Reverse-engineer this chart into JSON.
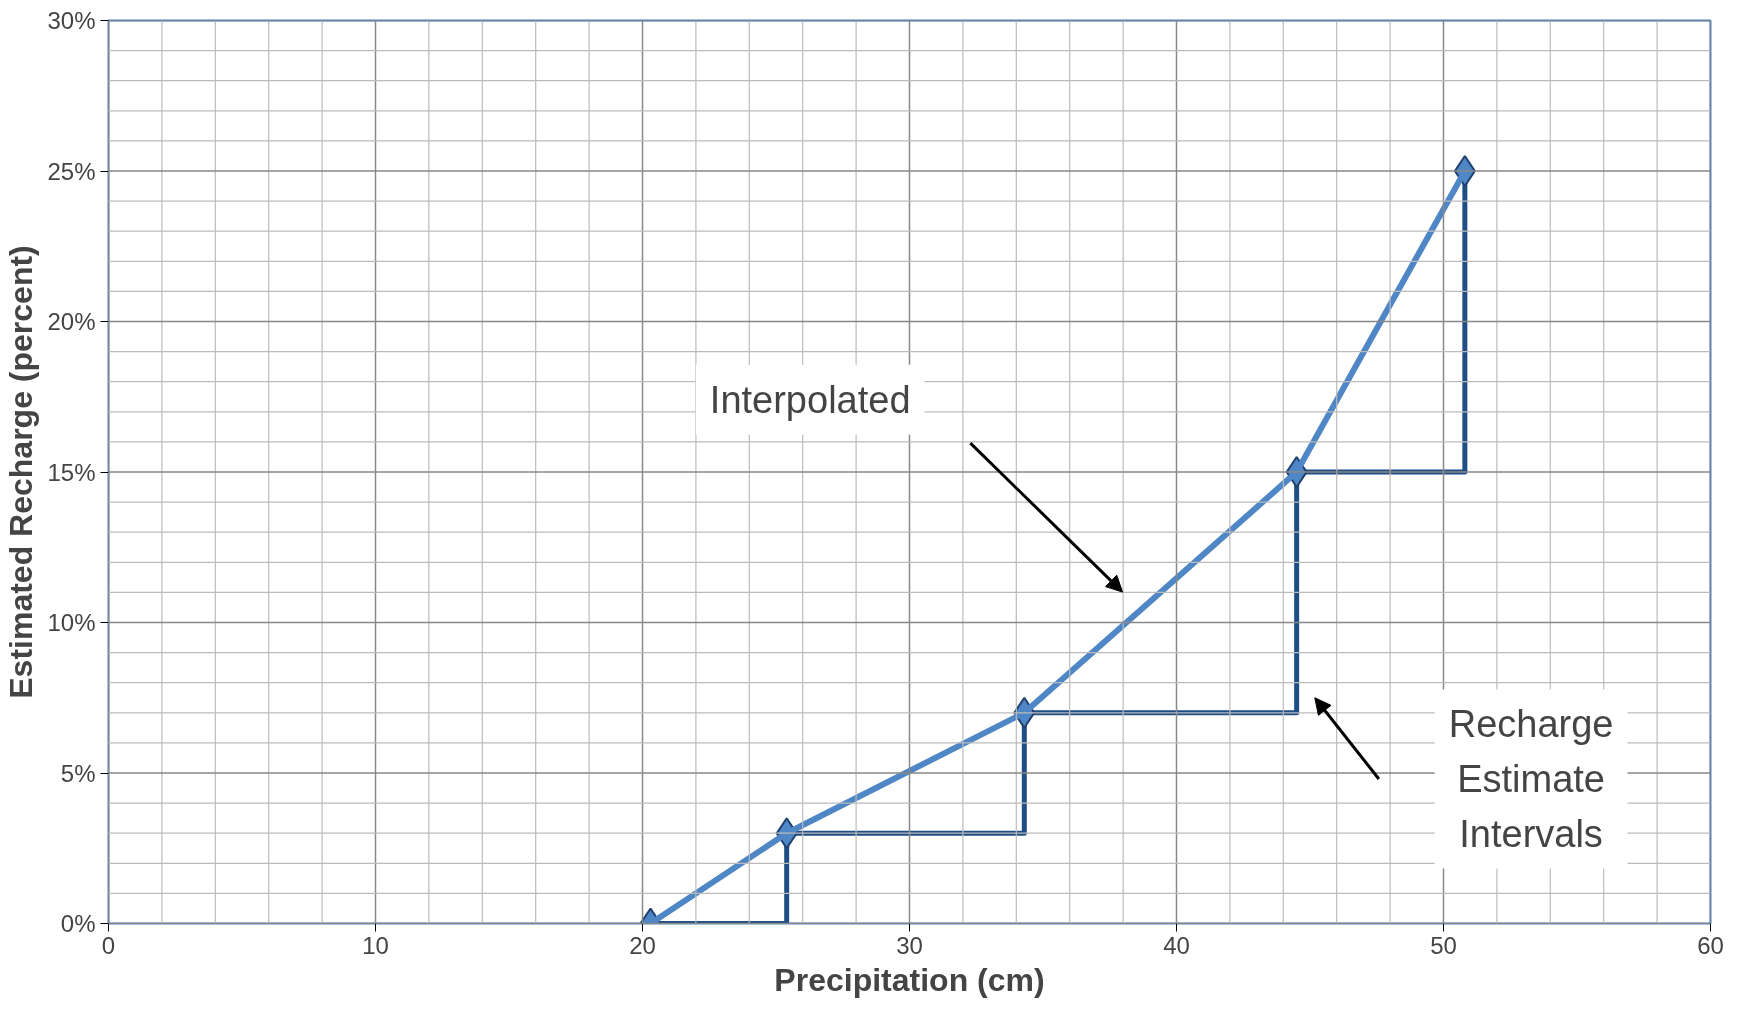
{
  "chart_data": {
    "type": "line",
    "xlabel": "Precipitation (cm)",
    "ylabel": "Estimated Recharge (percent)",
    "x": [
      20.3,
      25.4,
      34.3,
      44.5,
      50.8
    ],
    "series": [
      {
        "type": "step",
        "color": "#1f4e85",
        "values": [
          0,
          3,
          7,
          15,
          25
        ],
        "marker": "none"
      },
      {
        "color": "#4f86c6",
        "values": [
          0,
          3,
          7,
          15,
          25
        ],
        "marker": "diamond"
      }
    ],
    "xlim": [
      0,
      60
    ],
    "xticks": [
      0,
      10,
      20,
      30,
      40,
      50,
      60
    ],
    "ylim": [
      0,
      30
    ],
    "yticks": [
      {
        "value": 0,
        "label": "0%"
      },
      {
        "value": 5,
        "label": "5%"
      },
      {
        "value": 10,
        "label": "10%"
      },
      {
        "value": 15,
        "label": "15%"
      },
      {
        "value": 20,
        "label": "20%"
      },
      {
        "value": 25,
        "label": "25%"
      },
      {
        "value": 30,
        "label": "30%"
      }
    ],
    "grid": true,
    "annotations": [
      "Interpolated",
      "Recharge\nEstimate\nIntervals"
    ]
  }
}
